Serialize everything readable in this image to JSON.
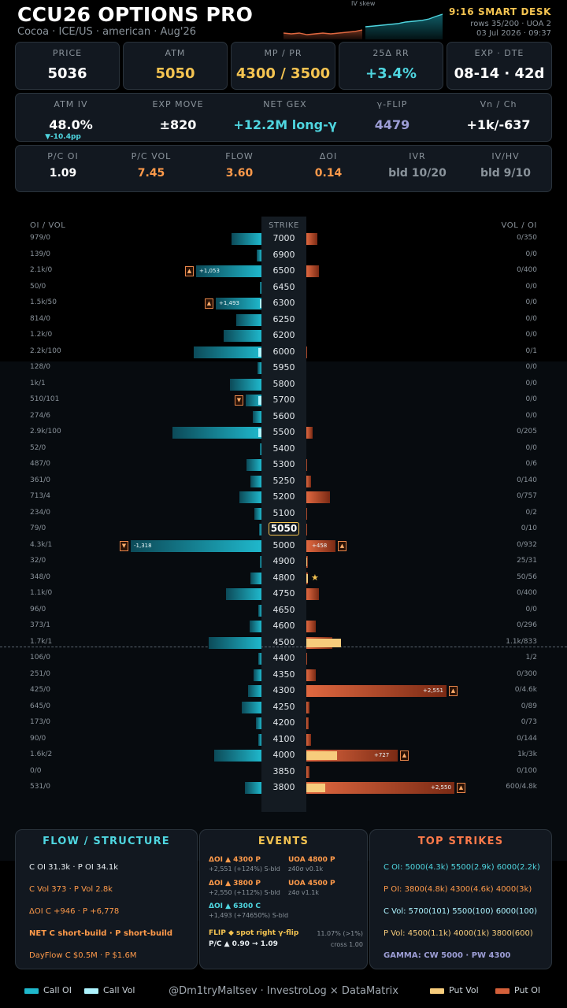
{
  "header": {
    "title": "CCU26 OPTIONS PRO",
    "subtitle": "Cocoa · ICE/US · american · Aug'26",
    "skew_label": "IV skew",
    "smart_desk": "9:16 SMART DESK",
    "rows_info": "rows 35/200 · UOA 2",
    "datetime": "03 Jul 2026 · 09:37"
  },
  "stats_row1": [
    {
      "label": "PRICE",
      "value": "5036",
      "color": "#ffffff"
    },
    {
      "label": "ATM",
      "value": "5050",
      "color": "#f5c451"
    },
    {
      "label": "MP / PR",
      "value": "4300 / 3500",
      "color": "#f5c451"
    },
    {
      "label": "25Δ RR",
      "value": "+3.4%",
      "color": "#4fd6e0"
    },
    {
      "label": "EXP · DTE",
      "value": "08-14 · 42d",
      "color": "#ffffff"
    }
  ],
  "stats_row2": [
    {
      "label": "ATM IV",
      "value": "48.0%",
      "color": "#ffffff",
      "sub": "▼-10.4pp"
    },
    {
      "label": "EXP MOVE",
      "value": "±820",
      "color": "#ffffff"
    },
    {
      "label": "NET GEX",
      "value": "+12.2M long-γ",
      "color": "#4fd6e0"
    },
    {
      "label": "γ-FLIP",
      "value": "4479",
      "color": "#9d9ed6"
    },
    {
      "label": "Vn / Ch",
      "value": "+1k/-637",
      "color": "#ffffff"
    }
  ],
  "stats_row3": [
    {
      "label": "P/C OI",
      "value": "1.09",
      "color": "#ffffff"
    },
    {
      "label": "P/C VOL",
      "value": "7.45",
      "color": "#ff9a4a"
    },
    {
      "label": "FLOW",
      "value": "3.60",
      "color": "#ff9a4a"
    },
    {
      "label": "ΔOI",
      "value": "0.14",
      "color": "#ff9a4a"
    },
    {
      "label": "IVR",
      "value": "bld 10/20",
      "color": "#8a939b"
    },
    {
      "label": "IV/HV",
      "value": "bld 9/10",
      "color": "#8a939b"
    }
  ],
  "ladder": {
    "left_header": "OI / VOL",
    "center_header": "STRIKE",
    "right_header": "VOL / OI",
    "atm_strike": 5050,
    "rows": [
      {
        "strike": "7000",
        "l": "979/0",
        "r": "0/350",
        "c": 38,
        "cv": 0,
        "p": 14,
        "pv": 0
      },
      {
        "strike": "6900",
        "l": "139/0",
        "r": "0/0",
        "c": 6,
        "cv": 0,
        "p": 0,
        "pv": 0
      },
      {
        "strike": "6500",
        "l": "2.1k/0",
        "r": "0/400",
        "c": 83,
        "cv": 0,
        "p": 16,
        "pv": 0,
        "cflag": "▲",
        "clbl": "+1,053"
      },
      {
        "strike": "6450",
        "l": "50/0",
        "r": "0/0",
        "c": 2,
        "cv": 0,
        "p": 0,
        "pv": 0
      },
      {
        "strike": "6300",
        "l": "1.5k/50",
        "r": "0/0",
        "c": 58,
        "cv": 2,
        "p": 0,
        "pv": 0,
        "cflag": "▲",
        "clbl": "+1,493"
      },
      {
        "strike": "6250",
        "l": "814/0",
        "r": "0/0",
        "c": 32,
        "cv": 0,
        "p": 0,
        "pv": 0
      },
      {
        "strike": "6200",
        "l": "1.2k/0",
        "r": "0/0",
        "c": 48,
        "cv": 0,
        "p": 0,
        "pv": 0
      },
      {
        "strike": "6000",
        "l": "2.2k/100",
        "r": "0/1",
        "c": 86,
        "cv": 4,
        "p": 1,
        "pv": 0
      },
      {
        "strike": "5950",
        "l": "128/0",
        "r": "0/0",
        "c": 5,
        "cv": 0,
        "p": 0,
        "pv": 0
      },
      {
        "strike": "5800",
        "l": "1k/1",
        "r": "0/0",
        "c": 40,
        "cv": 0,
        "p": 0,
        "pv": 0
      },
      {
        "strike": "5700",
        "l": "510/101",
        "r": "0/0",
        "c": 20,
        "cv": 4,
        "p": 0,
        "pv": 0,
        "cflag": "▼"
      },
      {
        "strike": "5600",
        "l": "274/6",
        "r": "0/0",
        "c": 11,
        "cv": 0,
        "p": 0,
        "pv": 0
      },
      {
        "strike": "5500",
        "l": "2.9k/100",
        "r": "0/205",
        "c": 113,
        "cv": 4,
        "p": 8,
        "pv": 0
      },
      {
        "strike": "5400",
        "l": "52/0",
        "r": "0/0",
        "c": 2,
        "cv": 0,
        "p": 0,
        "pv": 0
      },
      {
        "strike": "5300",
        "l": "487/0",
        "r": "0/6",
        "c": 19,
        "cv": 0,
        "p": 1,
        "pv": 0
      },
      {
        "strike": "5250",
        "l": "361/0",
        "r": "0/140",
        "c": 14,
        "cv": 0,
        "p": 6,
        "pv": 0
      },
      {
        "strike": "5200",
        "l": "713/4",
        "r": "0/757",
        "c": 28,
        "cv": 0,
        "p": 30,
        "pv": 0
      },
      {
        "strike": "5100",
        "l": "234/0",
        "r": "0/2",
        "c": 9,
        "cv": 0,
        "p": 1,
        "pv": 0
      },
      {
        "strike": "5050",
        "l": "79/0",
        "r": "0/10",
        "c": 3,
        "cv": 0,
        "p": 1,
        "pv": 0
      },
      {
        "strike": "5000",
        "l": "4.3k/1",
        "r": "0/932",
        "c": 166,
        "cv": 0,
        "p": 37,
        "pv": 0,
        "cflag": "▼",
        "clbl": "-1,318",
        "pflag": "▲",
        "plbl": "+458"
      },
      {
        "strike": "4900",
        "l": "32/0",
        "r": "25/31",
        "c": 2,
        "cv": 0,
        "p": 2,
        "pv": 1
      },
      {
        "strike": "4800",
        "l": "348/0",
        "r": "50/56",
        "c": 14,
        "cv": 0,
        "p": 2,
        "pv": 2,
        "star": true
      },
      {
        "strike": "4750",
        "l": "1.1k/0",
        "r": "0/400",
        "c": 45,
        "cv": 0,
        "p": 16,
        "pv": 0
      },
      {
        "strike": "4650",
        "l": "96/0",
        "r": "0/0",
        "c": 4,
        "cv": 0,
        "p": 0,
        "pv": 0
      },
      {
        "strike": "4600",
        "l": "373/1",
        "r": "0/296",
        "c": 15,
        "cv": 0,
        "p": 12,
        "pv": 0
      },
      {
        "strike": "4500",
        "l": "1.7k/1",
        "r": "1.1k/833",
        "c": 67,
        "cv": 0,
        "p": 33,
        "pv": 44
      },
      {
        "strike": "4400",
        "l": "106/0",
        "r": "1/2",
        "c": 4,
        "cv": 0,
        "p": 1,
        "pv": 0
      },
      {
        "strike": "4350",
        "l": "251/0",
        "r": "0/300",
        "c": 10,
        "cv": 0,
        "p": 12,
        "pv": 0
      },
      {
        "strike": "4300",
        "l": "425/0",
        "r": "0/4.6k",
        "c": 17,
        "cv": 0,
        "p": 178,
        "pv": 0,
        "pflag": "▲",
        "plbl": "+2,551"
      },
      {
        "strike": "4250",
        "l": "645/0",
        "r": "0/89",
        "c": 25,
        "cv": 0,
        "p": 4,
        "pv": 0
      },
      {
        "strike": "4200",
        "l": "173/0",
        "r": "0/73",
        "c": 7,
        "cv": 0,
        "p": 3,
        "pv": 0
      },
      {
        "strike": "4100",
        "l": "90/0",
        "r": "0/144",
        "c": 4,
        "cv": 0,
        "p": 6,
        "pv": 0
      },
      {
        "strike": "4000",
        "l": "1.6k/2",
        "r": "1k/3k",
        "c": 60,
        "cv": 0,
        "p": 116,
        "pv": 39,
        "pflag": "▲",
        "plbl": "+727"
      },
      {
        "strike": "3850",
        "l": "0/0",
        "r": "0/100",
        "c": 0,
        "cv": 0,
        "p": 4,
        "pv": 0
      },
      {
        "strike": "3800",
        "l": "531/0",
        "r": "600/4.8k",
        "c": 21,
        "cv": 0,
        "p": 188,
        "pv": 24,
        "pflag": "▲",
        "plbl": "+2,550"
      }
    ]
  },
  "flow_panel": {
    "title": "FLOW / STRUCTURE",
    "oi": "C OI 31.3k  ·  P OI 34.1k",
    "vol": "C Vol 373  ·  P Vol 2.8k",
    "doi": "ΔOI C +946  ·  P +6,778",
    "net": "NET  C short-build  ·  P short-build",
    "dayflow": "DayFlow  C $0.5M   ·   P $1.6M"
  },
  "events_panel": {
    "title": "EVENTS",
    "e1_title": "ΔOI ▲ 4300 P",
    "e1_sub": "+2,551 (+124%)  S-bld",
    "e2_title": "UOA 4800 P",
    "e2_sub": "z40σ v0.1k",
    "e3_title": "ΔOI ▲ 3800 P",
    "e3_sub": "+2,550 (+112%)  S-bld",
    "e4_title": "UOA 4500 P",
    "e4_sub": "z4σ v1.1k",
    "e5_title": "ΔOI ▲ 6300 C",
    "e5_sub": "+1,493 (+74650%)  S-bld",
    "flip_title": "FLIP ◆ spot right γ-flip",
    "flip_pct": "11.07% (>1%)",
    "pc_line": "P/C ▲ 0.90 → 1.09",
    "cross": "cross 1.00"
  },
  "strikes_panel": {
    "title": "TOP STRIKES",
    "c_oi": "C OI: 5000(4.3k)  5500(2.9k)  6000(2.2k)",
    "p_oi": "P OI: 3800(4.8k)  4300(4.6k)  4000(3k)",
    "c_vol": "C Vol: 5700(101)  5500(100)  6000(100)",
    "p_vol": "P Vol: 4500(1.1k)  4000(1k)  3800(600)",
    "gamma": "GAMMA: CW 5000 · PW 4300"
  },
  "footer": {
    "call_oi": "Call OI",
    "call_vol": "Call Vol",
    "credit": "@Dm1tryMaltsev  ·  InvestroLog × DataMatrix",
    "put_vol": "Put Vol",
    "put_oi": "Put OI"
  },
  "colors": {
    "call_oi": "#1fb8cc",
    "call_vol": "#aef4ff",
    "put_vol": "#f7cc7c",
    "put_oi": "#d4603a",
    "accent_gold": "#f5c451",
    "accent_cyan": "#4fd6e0",
    "accent_orange": "#ff9a4a"
  }
}
